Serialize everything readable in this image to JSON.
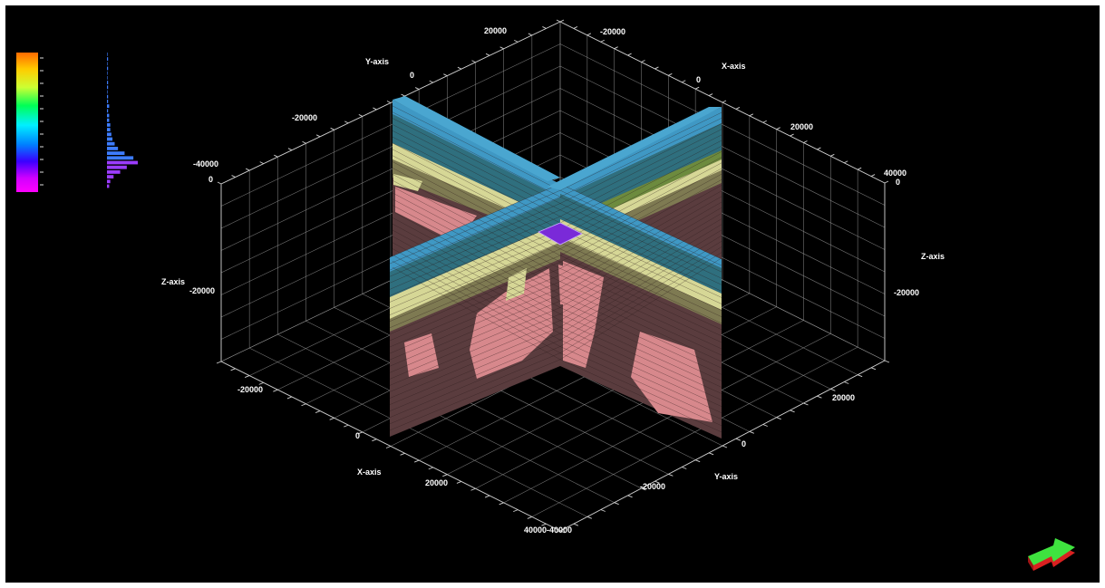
{
  "scene": {
    "background": "#000000",
    "axis_names": {
      "x": "X-axis",
      "y": "Y-axis",
      "z": "Z-axis"
    },
    "top_y_ticks": [
      "20000",
      "0",
      "-20000",
      "-40000"
    ],
    "top_x_ticks": [
      "-20000",
      "0",
      "20000",
      "40000"
    ],
    "left_z_ticks": [
      "0",
      "-20000"
    ],
    "right_z_ticks": [
      "0",
      "-20000"
    ],
    "bottom_x_ticks": [
      "-20000",
      "0",
      "20000"
    ],
    "bottom_y_ticks": [
      "-20000",
      "0",
      "20000"
    ],
    "bottom_corner_label": "40000-40000",
    "slice_colors": {
      "cap": "#3f98c4",
      "upper_band": "#2f6f7e",
      "yellow": "#d6d796",
      "olive": "#7e7a52",
      "pink": "#d7888c",
      "dark": "#5a3c3e",
      "marker": "#7a2ad8"
    }
  },
  "colorbar": {
    "gradient": [
      "#ff6a00",
      "#ffcc00",
      "#ccff33",
      "#00ff55",
      "#00f0ff",
      "#0080ff",
      "#3a00ff",
      "#d000ff",
      "#ff00ff"
    ]
  },
  "histogram": {
    "color": "#3d7cff",
    "counts": [
      0,
      1,
      0,
      1,
      0,
      0,
      1,
      1,
      0,
      1,
      1,
      2,
      1,
      2,
      2,
      3,
      3,
      4,
      5,
      7,
      10,
      16,
      24,
      28,
      18,
      12,
      6,
      3,
      2
    ]
  },
  "orientation_icon": {
    "top_color": "#3fe33f",
    "side_color": "#d92020"
  }
}
